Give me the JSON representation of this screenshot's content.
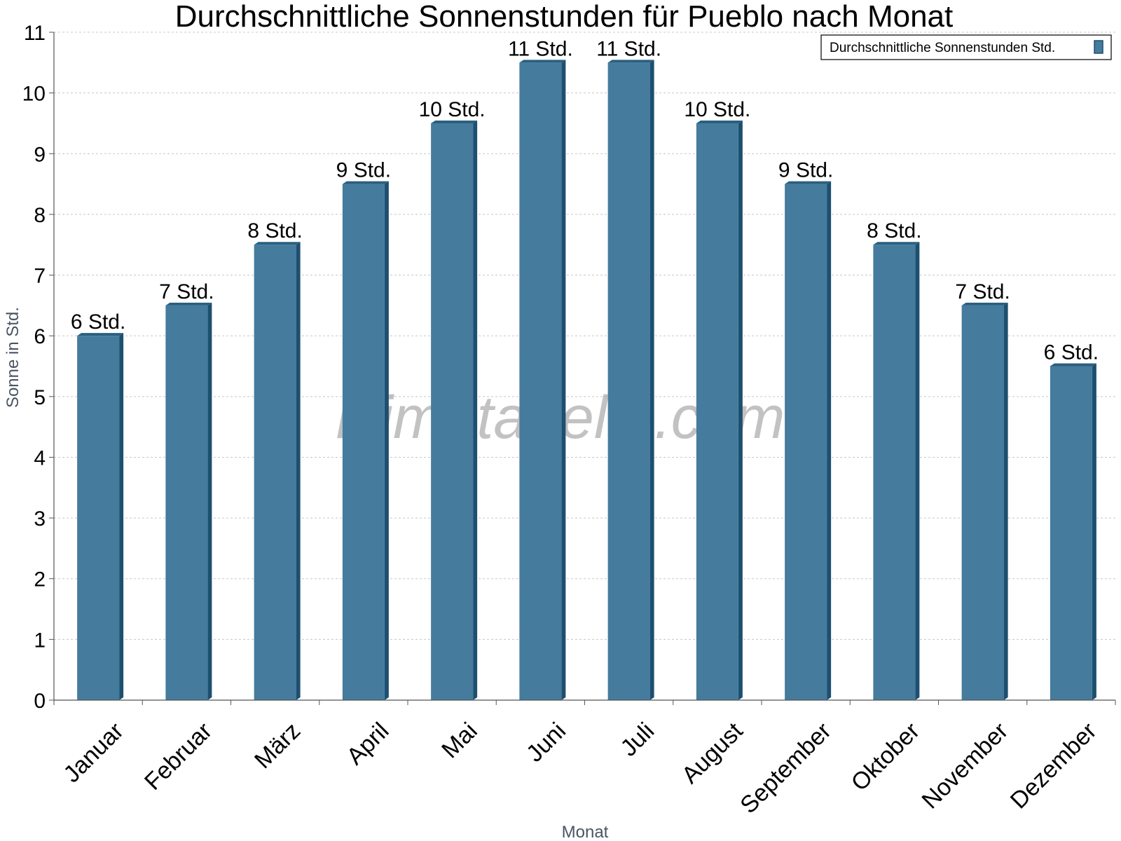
{
  "chart_data": {
    "type": "bar",
    "title": "Durchschnittliche Sonnenstunden für Pueblo nach Monat",
    "xlabel": "Monat",
    "ylabel": "Sonne in Std.",
    "ylim": [
      0,
      11
    ],
    "yticks": [
      "0",
      "1",
      "2",
      "3",
      "4",
      "5",
      "6",
      "7",
      "8",
      "9",
      "10",
      "11"
    ],
    "grid": true,
    "legend_position": "top-right",
    "categories": [
      "Januar",
      "Februar",
      "März",
      "April",
      "Mai",
      "Juni",
      "Juli",
      "August",
      "September",
      "Oktober",
      "November",
      "Dezember"
    ],
    "series": [
      {
        "name": "Durchschnittliche Sonnenstunden Std.",
        "values": [
          6,
          6.5,
          7.5,
          8.5,
          9.5,
          10.5,
          10.5,
          9.5,
          8.5,
          7.5,
          6.5,
          5.5
        ],
        "labels": [
          "6 Std.",
          "7 Std.",
          "8 Std.",
          "9 Std.",
          "10 Std.",
          "11 Std.",
          "11 Std.",
          "10 Std.",
          "9 Std.",
          "8 Std.",
          "7 Std.",
          "6 Std."
        ]
      }
    ],
    "colors": {
      "bar": "#457b9d",
      "bar_side": "#1d4f70",
      "bar_top": "#2a5f80",
      "grid": "#c8c8c8",
      "axis": "#555555"
    }
  },
  "watermark": "klimatabelle.com"
}
